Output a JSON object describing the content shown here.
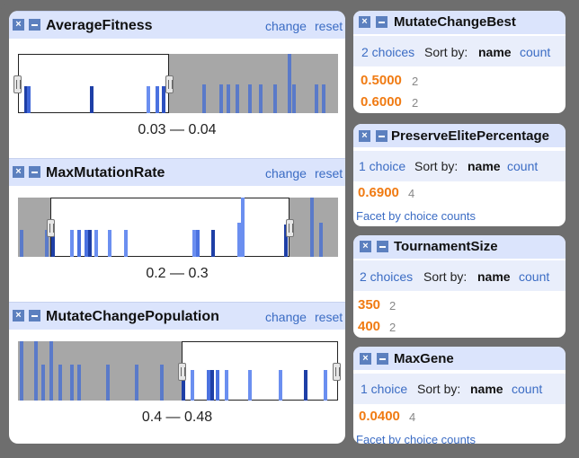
{
  "range_facets": [
    {
      "title": "AverageFitness",
      "change": "change",
      "reset": "reset",
      "range_label": "0.03 — 0.04",
      "bars": [
        {
          "x": 7,
          "h": 30,
          "c": "#1e3fa6"
        },
        {
          "x": 10,
          "h": 30,
          "c": "#3f66d8"
        },
        {
          "x": 80,
          "h": 30,
          "c": "#1e3fa6"
        },
        {
          "x": 143,
          "h": 30,
          "c": "#6b8ff0"
        },
        {
          "x": 153,
          "h": 30,
          "c": "#4b72e0"
        },
        {
          "x": 160,
          "h": 30,
          "c": "#2d50c0"
        },
        {
          "x": 205,
          "h": 32,
          "c": "#5a7ac9"
        },
        {
          "x": 224,
          "h": 32,
          "c": "#5a7ac9"
        },
        {
          "x": 232,
          "h": 32,
          "c": "#5a7ac9"
        },
        {
          "x": 242,
          "h": 32,
          "c": "#5a7ac9"
        },
        {
          "x": 256,
          "h": 32,
          "c": "#5a7ac9"
        },
        {
          "x": 268,
          "h": 32,
          "c": "#5a7ac9"
        },
        {
          "x": 284,
          "h": 32,
          "c": "#5a7ac9"
        },
        {
          "x": 300,
          "h": 66,
          "c": "#5a7ac9"
        },
        {
          "x": 305,
          "h": 32,
          "c": "#5a7ac9"
        },
        {
          "x": 330,
          "h": 32,
          "c": "#5a7ac9"
        },
        {
          "x": 338,
          "h": 32,
          "c": "#5a7ac9"
        }
      ]
    },
    {
      "title": "MaxMutationRate",
      "change": "change",
      "reset": "reset",
      "range_label": "0.2 — 0.3",
      "bars": [
        {
          "x": 2,
          "h": 30,
          "c": "#5a7ac9"
        },
        {
          "x": 30,
          "h": 30,
          "c": "#5a7ac9"
        },
        {
          "x": 37,
          "h": 30,
          "c": "#1e3fa6"
        },
        {
          "x": 58,
          "h": 30,
          "c": "#6b8ff0"
        },
        {
          "x": 66,
          "h": 30,
          "c": "#4b72e0"
        },
        {
          "x": 74,
          "h": 30,
          "c": "#4b72e0"
        },
        {
          "x": 78,
          "h": 30,
          "c": "#1e3fa6"
        },
        {
          "x": 85,
          "h": 30,
          "c": "#6b8ff0"
        },
        {
          "x": 100,
          "h": 30,
          "c": "#6b8ff0"
        },
        {
          "x": 118,
          "h": 30,
          "c": "#6b8ff0"
        },
        {
          "x": 194,
          "h": 30,
          "c": "#6b8ff0"
        },
        {
          "x": 198,
          "h": 30,
          "c": "#4b72e0"
        },
        {
          "x": 215,
          "h": 30,
          "c": "#1e3fa6"
        },
        {
          "x": 244,
          "h": 38,
          "c": "#6b8ff0"
        },
        {
          "x": 248,
          "h": 66,
          "c": "#6b8ff0"
        },
        {
          "x": 296,
          "h": 36,
          "c": "#1e3fa6"
        },
        {
          "x": 325,
          "h": 66,
          "c": "#5a7ac9"
        },
        {
          "x": 335,
          "h": 38,
          "c": "#5a7ac9"
        }
      ]
    },
    {
      "title": "MutateChangePopulation",
      "change": "change",
      "reset": "reset",
      "range_label": "0.4 — 0.48",
      "bars": [
        {
          "x": 2,
          "h": 66,
          "c": "#5a7ac9"
        },
        {
          "x": 18,
          "h": 66,
          "c": "#5a7ac9"
        },
        {
          "x": 26,
          "h": 40,
          "c": "#5a7ac9"
        },
        {
          "x": 35,
          "h": 66,
          "c": "#5a7ac9"
        },
        {
          "x": 45,
          "h": 40,
          "c": "#5a7ac9"
        },
        {
          "x": 58,
          "h": 40,
          "c": "#5a7ac9"
        },
        {
          "x": 66,
          "h": 40,
          "c": "#5a7ac9"
        },
        {
          "x": 98,
          "h": 40,
          "c": "#5a7ac9"
        },
        {
          "x": 130,
          "h": 40,
          "c": "#5a7ac9"
        },
        {
          "x": 158,
          "h": 40,
          "c": "#5a7ac9"
        },
        {
          "x": 182,
          "h": 40,
          "c": "#1e3fa6"
        },
        {
          "x": 192,
          "h": 34,
          "c": "#6b8ff0"
        },
        {
          "x": 210,
          "h": 34,
          "c": "#4b72e0"
        },
        {
          "x": 214,
          "h": 34,
          "c": "#1e3fa6"
        },
        {
          "x": 220,
          "h": 34,
          "c": "#4b72e0"
        },
        {
          "x": 230,
          "h": 34,
          "c": "#6b8ff0"
        },
        {
          "x": 256,
          "h": 34,
          "c": "#6b8ff0"
        },
        {
          "x": 290,
          "h": 34,
          "c": "#6b8ff0"
        },
        {
          "x": 318,
          "h": 34,
          "c": "#1e3fa6"
        },
        {
          "x": 340,
          "h": 34,
          "c": "#6b8ff0"
        }
      ]
    }
  ],
  "list_facets": [
    {
      "title": "MutateChangeBest",
      "choices": "2 choices",
      "sort_by": "Sort by:",
      "name": "name",
      "count": "count",
      "items": [
        {
          "value": "0.5000",
          "count": "2"
        },
        {
          "value": "0.6000",
          "count": "2"
        }
      ],
      "footer": ""
    },
    {
      "title": "PreserveElitePercentage",
      "choices": "1 choice",
      "sort_by": "Sort by:",
      "name": "name",
      "count": "count",
      "items": [
        {
          "value": "0.6900",
          "count": "4"
        }
      ],
      "footer": "Facet by choice counts"
    },
    {
      "title": "TournamentSize",
      "choices": "2 choices",
      "sort_by": "Sort by:",
      "name": "name",
      "count": "count",
      "items": [
        {
          "value": "350",
          "count": "2"
        },
        {
          "value": "400",
          "count": "2"
        }
      ],
      "footer": ""
    },
    {
      "title": "MaxGene",
      "choices": "1 choice",
      "sort_by": "Sort by:",
      "name": "name",
      "count": "count",
      "items": [
        {
          "value": "0.0400",
          "count": "4"
        }
      ],
      "footer": "Facet by choice counts"
    }
  ],
  "icons": {
    "close": "×",
    "close_icon": "close-icon",
    "minimize_icon": "minimize-icon"
  },
  "colors": {
    "header": "#dbe4fc",
    "link": "#3b6cc4",
    "value": "#f07b13",
    "selected_bar": "#1e3fa6"
  }
}
